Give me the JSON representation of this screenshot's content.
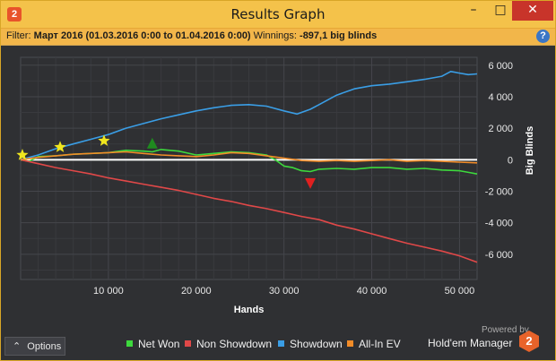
{
  "window": {
    "title": "Results Graph",
    "app_icon": "2",
    "minimize_symbol": "–",
    "maximize_symbol": "□",
    "close_symbol": "✕"
  },
  "filter": {
    "filter_label": "Filter:",
    "filter_value": "Март 2016 (01.03.2016 0:00 to 01.04.2016 0:00)",
    "winnings_label": "Winnings:",
    "winnings_value": "-897,1 big blinds",
    "help_symbol": "?"
  },
  "bottom": {
    "options_label": "Options",
    "options_chevron": "⌃",
    "powered_by": "Powered by",
    "brand": "Hold'em Manager",
    "brand_logo": "2"
  },
  "colors": {
    "net_won": "#3dd93d",
    "non_showdown": "#e04848",
    "showdown": "#3a9ee6",
    "all_in_ev": "#f28c28",
    "background": "#2f3033"
  },
  "chart_data": {
    "type": "line",
    "xlabel": "Hands",
    "ylabel": "Big Blinds",
    "xlim": [
      0,
      52000
    ],
    "ylim": [
      -7600,
      6500
    ],
    "x_ticks": [
      10000,
      20000,
      30000,
      40000,
      50000
    ],
    "x_tick_labels": [
      "10 000",
      "20 000",
      "30 000",
      "40 000",
      "50 000"
    ],
    "y_ticks": [
      6000,
      4000,
      2000,
      0,
      -2000,
      -4000,
      -6000
    ],
    "y_tick_labels": [
      "6 000",
      "4 000",
      "2 000",
      "0",
      "-2 000",
      "-4 000",
      "-6 000"
    ],
    "grid": true,
    "legend_position": "bottom",
    "series": [
      {
        "name": "Net Won",
        "color": "#3dd93d",
        "x": [
          0,
          1000,
          2000,
          4000,
          6000,
          8000,
          10000,
          12000,
          14000,
          15000,
          16000,
          18000,
          20000,
          22000,
          24000,
          26000,
          28000,
          29000,
          30000,
          31000,
          32000,
          33000,
          34000,
          36000,
          38000,
          40000,
          42000,
          44000,
          46000,
          48000,
          50000,
          51000,
          52000
        ],
        "y": [
          0,
          -100,
          200,
          250,
          350,
          400,
          450,
          600,
          550,
          500,
          650,
          550,
          300,
          400,
          500,
          450,
          300,
          0,
          -400,
          -500,
          -700,
          -750,
          -600,
          -550,
          -600,
          -500,
          -500,
          -600,
          -550,
          -650,
          -700,
          -800,
          -900
        ]
      },
      {
        "name": "Non Showdown",
        "color": "#e04848",
        "x": [
          0,
          2000,
          4000,
          6000,
          8000,
          10000,
          12000,
          14000,
          16000,
          18000,
          20000,
          22000,
          24000,
          26000,
          28000,
          30000,
          32000,
          34000,
          36000,
          38000,
          40000,
          42000,
          44000,
          46000,
          48000,
          50000,
          52000
        ],
        "y": [
          0,
          -250,
          -500,
          -700,
          -900,
          -1150,
          -1350,
          -1550,
          -1750,
          -1950,
          -2200,
          -2450,
          -2650,
          -2900,
          -3100,
          -3350,
          -3600,
          -3800,
          -4150,
          -4400,
          -4700,
          -5000,
          -5300,
          -5550,
          -5800,
          -6100,
          -6500
        ]
      },
      {
        "name": "Showdown",
        "color": "#3a9ee6",
        "x": [
          0,
          2000,
          4000,
          6000,
          8000,
          10000,
          12000,
          14000,
          16000,
          18000,
          20000,
          22000,
          24000,
          26000,
          28000,
          30000,
          31500,
          33000,
          34000,
          36000,
          38000,
          40000,
          42000,
          44000,
          46000,
          48000,
          49000,
          50000,
          51000,
          52000
        ],
        "y": [
          0,
          300,
          700,
          1000,
          1300,
          1600,
          2000,
          2300,
          2600,
          2850,
          3100,
          3300,
          3450,
          3500,
          3400,
          3100,
          2900,
          3200,
          3500,
          4100,
          4500,
          4700,
          4800,
          4950,
          5100,
          5300,
          5600,
          5500,
          5400,
          5450
        ]
      },
      {
        "name": "All-In EV",
        "color": "#f28c28",
        "x": [
          0,
          2000,
          4000,
          6000,
          8000,
          10000,
          12000,
          14000,
          16000,
          18000,
          20000,
          22000,
          24000,
          26000,
          28000,
          30000,
          32000,
          34000,
          36000,
          38000,
          40000,
          42000,
          44000,
          46000,
          48000,
          50000,
          52000
        ],
        "y": [
          0,
          150,
          250,
          350,
          400,
          450,
          500,
          400,
          300,
          250,
          200,
          300,
          450,
          400,
          250,
          100,
          -50,
          -100,
          -50,
          -100,
          -50,
          0,
          -100,
          -50,
          -100,
          -150,
          -200
        ]
      }
    ],
    "markers": [
      {
        "type": "star",
        "color": "#f0e61e",
        "x": 200,
        "y": 300
      },
      {
        "type": "star",
        "color": "#f0e61e",
        "x": 4500,
        "y": 800
      },
      {
        "type": "star",
        "color": "#f0e61e",
        "x": 9500,
        "y": 1200
      },
      {
        "type": "triangle-up",
        "color": "#1f8a1f",
        "x": 15000,
        "y": 1000
      },
      {
        "type": "triangle-down",
        "color": "#e02020",
        "x": 33000,
        "y": -1450
      }
    ]
  }
}
